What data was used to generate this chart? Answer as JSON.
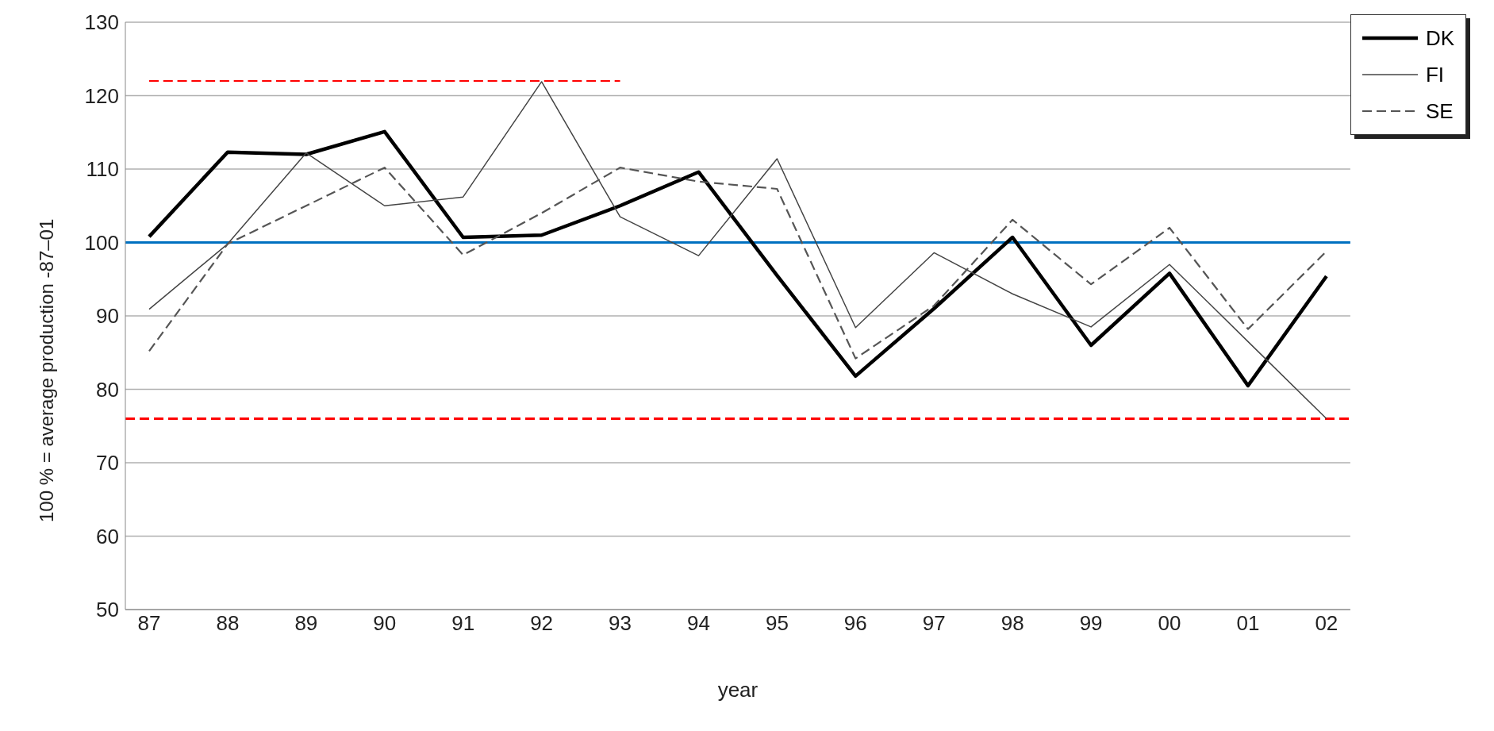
{
  "chart_data": {
    "type": "line",
    "xlabel": "year",
    "ylabel": "100 % = average production -87–01",
    "categories": [
      "87",
      "88",
      "89",
      "90",
      "91",
      "92",
      "93",
      "94",
      "95",
      "96",
      "97",
      "98",
      "99",
      "00",
      "01",
      "02"
    ],
    "series": [
      {
        "name": "DK",
        "color": "#000000",
        "line_style": "solid",
        "values": [
          100.8,
          112.3,
          112,
          115.1,
          100.7,
          101,
          105,
          109.6,
          95.5,
          81.8,
          91,
          100.7,
          86,
          95.8,
          80.5,
          95.4
        ]
      },
      {
        "name": "FI",
        "color": "#444444",
        "line_style": "solid",
        "values": [
          90.9,
          99.8,
          112.2,
          105,
          106.2,
          121.9,
          103.5,
          98.2,
          111.4,
          88.4,
          98.6,
          93,
          88.5,
          97,
          86.5,
          76
        ]
      },
      {
        "name": "SE",
        "color": "#555555",
        "line_style": "dashed",
        "values": [
          85.2,
          99.8,
          105,
          110.2,
          98.3,
          104,
          110.2,
          108.3,
          107.3,
          84.2,
          91.4,
          103.1,
          94.3,
          102,
          88.2,
          98.8
        ]
      },
      {
        "color": "#ff0000",
        "line_style": "dashed",
        "values": [
          122,
          122,
          122,
          122,
          122,
          122,
          122,
          null,
          null,
          null,
          null,
          null,
          null,
          null,
          null,
          null
        ]
      }
    ],
    "ref_lines": [
      {
        "axis": "y",
        "value": 100,
        "color": "#0070c0",
        "line_style": "solid"
      },
      {
        "axis": "y",
        "value": 76,
        "color": "#ff0000",
        "line_style": "dashed"
      }
    ],
    "ylim": [
      50,
      130
    ],
    "yticks": [
      50,
      60,
      70,
      80,
      90,
      100,
      110,
      120,
      130
    ],
    "grid": "y",
    "legend": "top right",
    "marker": "none"
  }
}
